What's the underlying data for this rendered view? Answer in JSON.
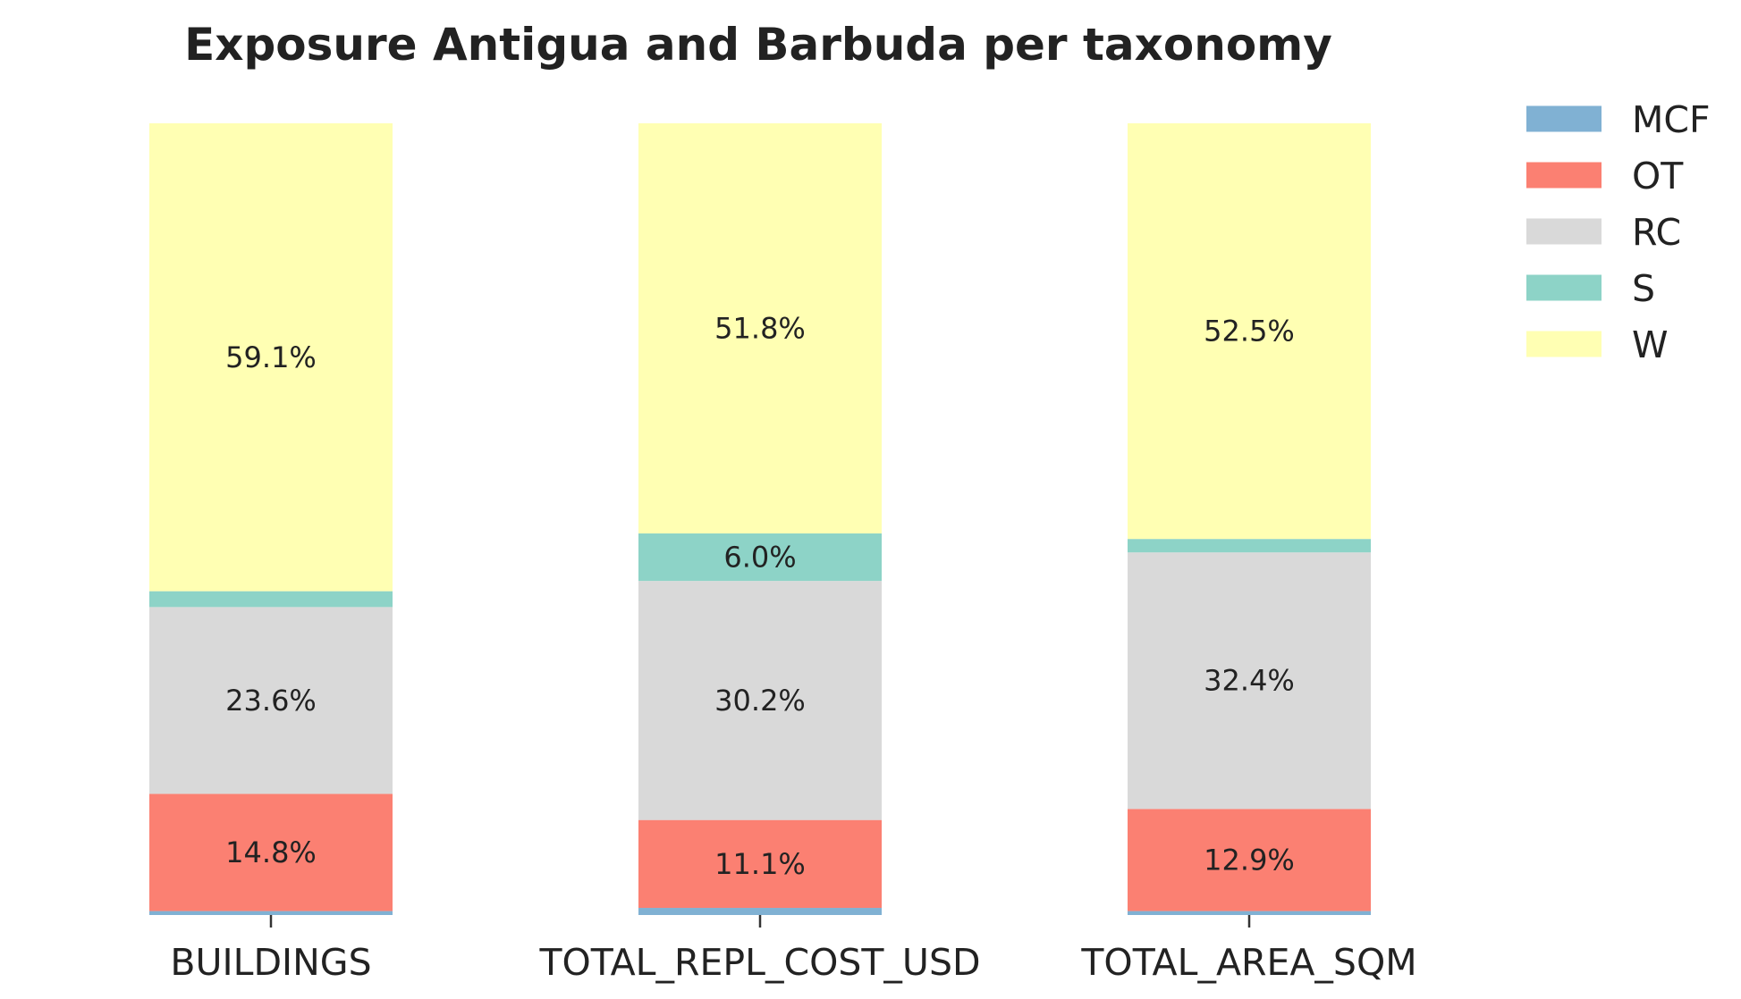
{
  "chart_data": {
    "type": "bar",
    "stacked": true,
    "title": "Exposure Antigua and Barbuda per taxonomy",
    "xlabel": "",
    "ylabel": "",
    "ylim": [
      0,
      100
    ],
    "grid": false,
    "legend_position": "top-right",
    "categories": [
      "BUILDINGS",
      "TOTAL_REPL_COST_USD",
      "TOTAL_AREA_SQM"
    ],
    "series": [
      {
        "name": "MCF",
        "color": "#80b1d3",
        "values": [
          0.5,
          0.9,
          0.5
        ],
        "labels": [
          "",
          "",
          ""
        ]
      },
      {
        "name": "OT",
        "color": "#fb8072",
        "values": [
          14.8,
          11.1,
          12.9
        ],
        "labels": [
          "14.8%",
          "11.1%",
          "12.9%"
        ]
      },
      {
        "name": "RC",
        "color": "#d9d9d9",
        "values": [
          23.6,
          30.2,
          32.4
        ],
        "labels": [
          "23.6%",
          "30.2%",
          "32.4%"
        ]
      },
      {
        "name": "S",
        "color": "#8dd3c7",
        "values": [
          2.0,
          6.0,
          1.7
        ],
        "labels": [
          "",
          "6.0%",
          ""
        ]
      },
      {
        "name": "W",
        "color": "#ffffb3",
        "values": [
          59.1,
          51.8,
          52.5
        ],
        "labels": [
          "59.1%",
          "51.8%",
          "52.5%"
        ]
      }
    ]
  }
}
